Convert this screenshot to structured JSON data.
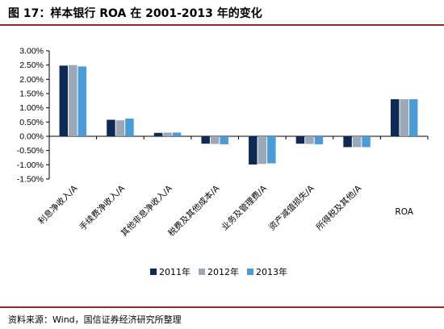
{
  "title": "图 17：样本银行 ROA 在 2001-2013 年的变化",
  "source": "资料来源：Wind，国信证券经济研究所整理",
  "chart_data": {
    "type": "bar",
    "title": "",
    "xlabel": "",
    "ylabel": "",
    "categories": [
      "利息净收入/A",
      "手续费净收入/A",
      "其他非息净收入/A",
      "税费及其他成本/A",
      "业务及管理费/A",
      "资产减值损失/A",
      "所得税及其他/A",
      "ROA"
    ],
    "y_ticks": [
      "3.00%",
      "2.50%",
      "2.00%",
      "1.50%",
      "1.00%",
      "0.50%",
      "0.00%",
      "-0.50%",
      "-1.00%",
      "-1.50%"
    ],
    "ylim": [
      -1.5,
      3.0
    ],
    "unit": "%",
    "grid": false,
    "legend_position": "bottom",
    "series": [
      {
        "name": "2011年",
        "color": "#0d2a56",
        "values": [
          2.48,
          0.58,
          0.12,
          -0.26,
          -0.99,
          -0.26,
          -0.38,
          1.3
        ]
      },
      {
        "name": "2012年",
        "color": "#9aa8b8",
        "values": [
          2.5,
          0.56,
          0.13,
          -0.27,
          -0.97,
          -0.27,
          -0.38,
          1.3
        ]
      },
      {
        "name": "2013年",
        "color": "#4a9bd9",
        "values": [
          2.45,
          0.62,
          0.13,
          -0.28,
          -0.95,
          -0.28,
          -0.38,
          1.3
        ]
      }
    ]
  }
}
